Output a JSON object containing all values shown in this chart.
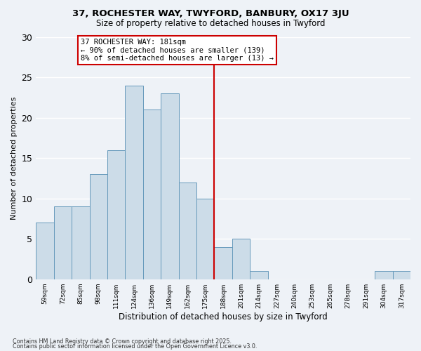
{
  "title1": "37, ROCHESTER WAY, TWYFORD, BANBURY, OX17 3JU",
  "title2": "Size of property relative to detached houses in Twyford",
  "xlabel": "Distribution of detached houses by size in Twyford",
  "ylabel": "Number of detached properties",
  "bar_color": "#ccdce8",
  "bar_edge_color": "#6699bb",
  "categories": [
    "59sqm",
    "72sqm",
    "85sqm",
    "98sqm",
    "111sqm",
    "124sqm",
    "136sqm",
    "149sqm",
    "162sqm",
    "175sqm",
    "188sqm",
    "201sqm",
    "214sqm",
    "227sqm",
    "240sqm",
    "253sqm",
    "265sqm",
    "278sqm",
    "291sqm",
    "304sqm",
    "317sqm"
  ],
  "values": [
    7,
    9,
    9,
    13,
    16,
    24,
    21,
    23,
    12,
    10,
    4,
    5,
    1,
    0,
    0,
    0,
    0,
    0,
    0,
    1,
    1
  ],
  "vline_color": "#cc0000",
  "annotation_title": "37 ROCHESTER WAY: 181sqm",
  "annotation_line1": "← 90% of detached houses are smaller (139)",
  "annotation_line2": "8% of semi-detached houses are larger (13) →",
  "annotation_box_color": "#ffffff",
  "annotation_box_edge": "#cc0000",
  "ylim": [
    0,
    30
  ],
  "yticks": [
    0,
    5,
    10,
    15,
    20,
    25,
    30
  ],
  "background_color": "#eef2f7",
  "grid_color": "#ffffff",
  "footnote1": "Contains HM Land Registry data © Crown copyright and database right 2025.",
  "footnote2": "Contains public sector information licensed under the Open Government Licence v3.0."
}
